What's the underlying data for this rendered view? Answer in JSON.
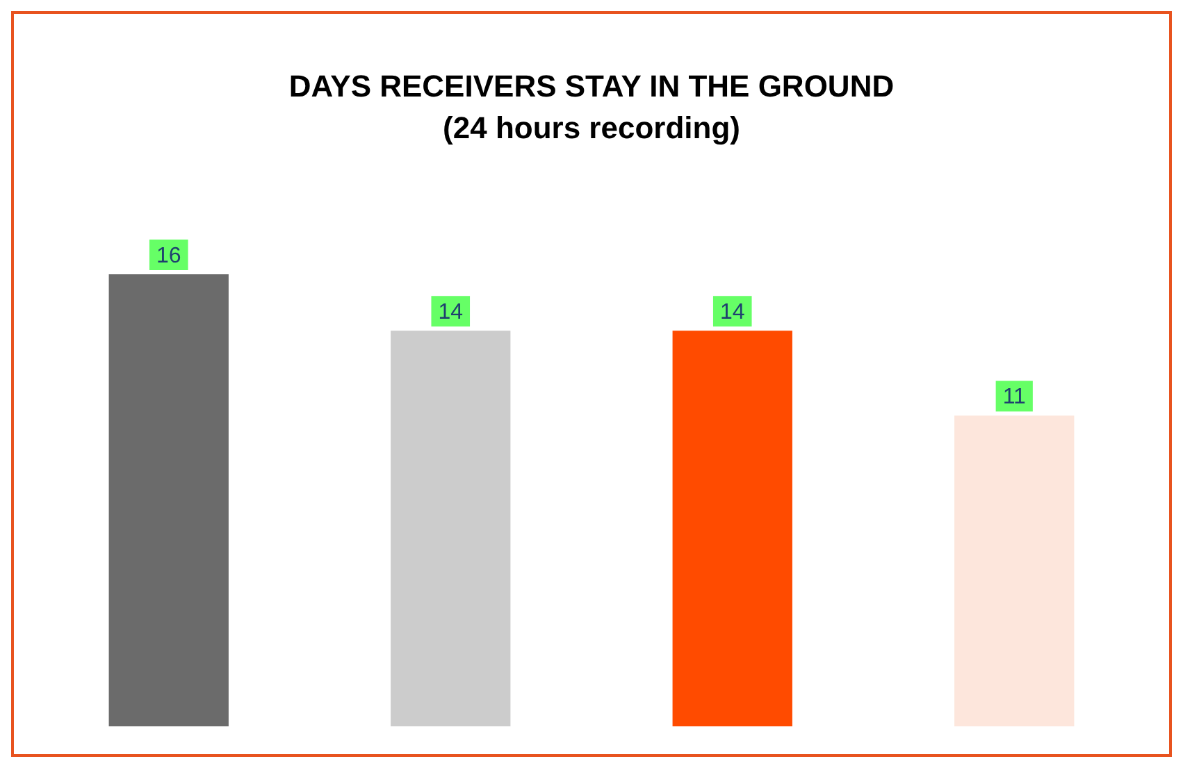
{
  "chart_data": {
    "type": "bar",
    "title": "DAYS RECEIVERS STAY IN THE GROUND",
    "subtitle": "(24 hours recording)",
    "categories": [
      null,
      null,
      null,
      null
    ],
    "values": [
      16,
      14,
      14,
      11
    ],
    "colors": [
      "#6b6b6b",
      "#cccccc",
      "#ff4b00",
      "#fde6dc"
    ],
    "data_labels": true,
    "legend": false
  }
}
